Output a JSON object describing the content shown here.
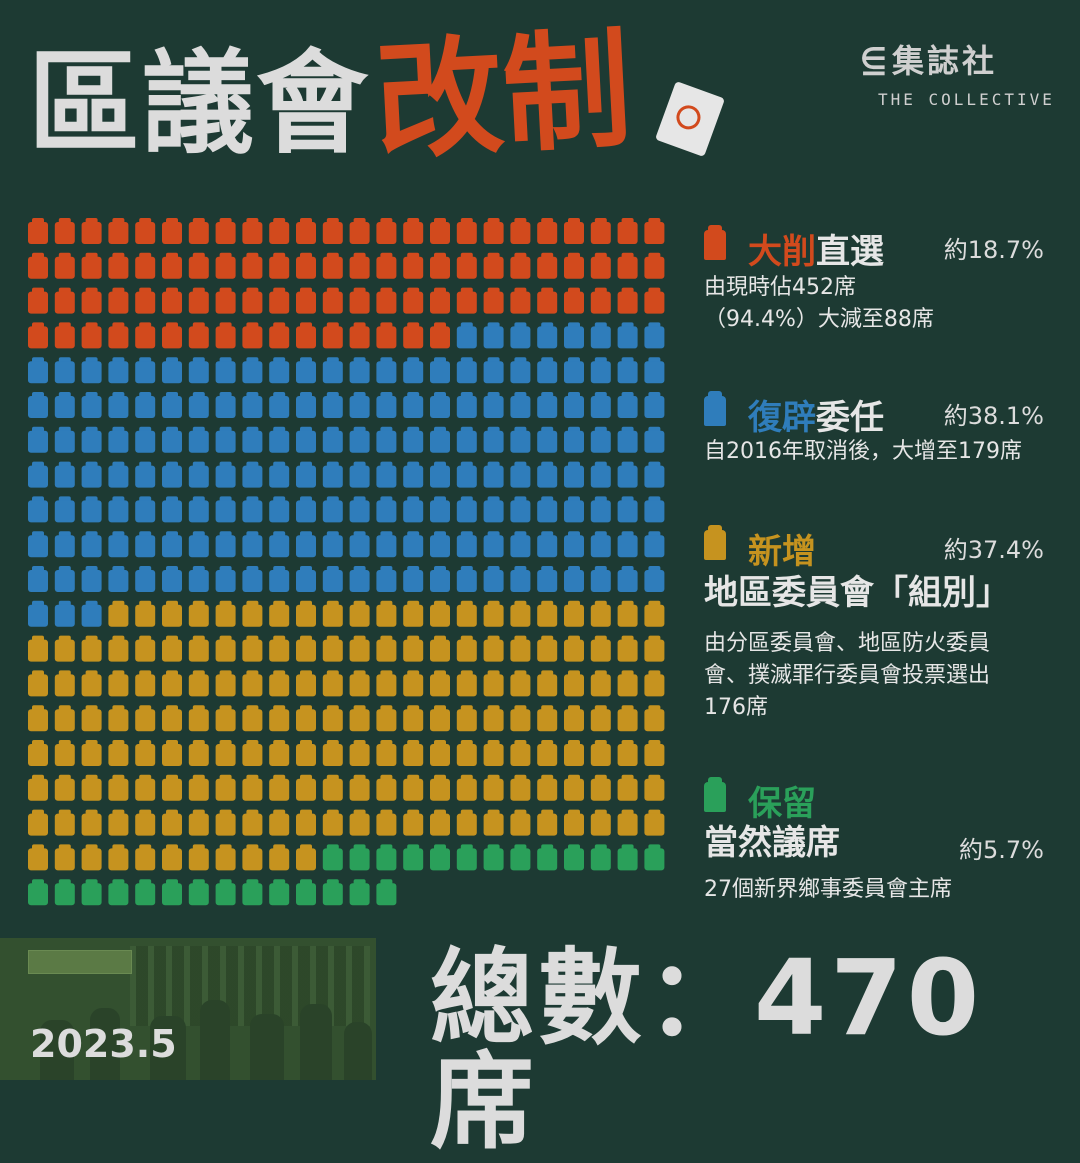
{
  "title": {
    "main": "區議會",
    "accent": "改制"
  },
  "brand": {
    "name": "集誌社",
    "name_en": "THE COLLECTIVE",
    "logo": "collective-logo"
  },
  "colors": {
    "background": "#1d3a33",
    "direct": "#d24a1d",
    "appointed": "#2f7dbb",
    "district": "#c6931f",
    "ex_officio": "#2aa05a",
    "text": "#dcdcdc"
  },
  "legend": {
    "direct": {
      "h1": "大削",
      "h2": "直選",
      "pct": "約18.7%",
      "desc1": "由現時佔452席",
      "desc2": "（94.4%）大減至88席"
    },
    "appointed": {
      "h1": "復辟",
      "h2": "委任",
      "pct": "約38.1%",
      "desc1": "自2016年取消後，大增至179席"
    },
    "district": {
      "h1": "新增",
      "pct": "約37.4%",
      "big": "地區委員會「組別」",
      "desc1": "由分區委員會、地區防火委員",
      "desc2": "會、撲滅罪行委員會投票選出",
      "desc3": "176席"
    },
    "ex_officio": {
      "h1": "保留",
      "big": "當然議席",
      "pct": "約5.7%",
      "desc1": "27個新界鄉事委員會主席"
    }
  },
  "footer": {
    "date": "2023.5",
    "total": "總數：470席"
  },
  "chart_data": {
    "type": "waffle",
    "columns": 24,
    "total": 470,
    "series": [
      {
        "name": "大削直選",
        "value": 88,
        "color": "#d24a1d"
      },
      {
        "name": "復辟委任",
        "value": 179,
        "color": "#2f7dbb"
      },
      {
        "name": "新增地區委員會「組別」",
        "value": 176,
        "color": "#c6931f"
      },
      {
        "name": "保留當然議席",
        "value": 27,
        "color": "#2aa05a"
      }
    ]
  }
}
